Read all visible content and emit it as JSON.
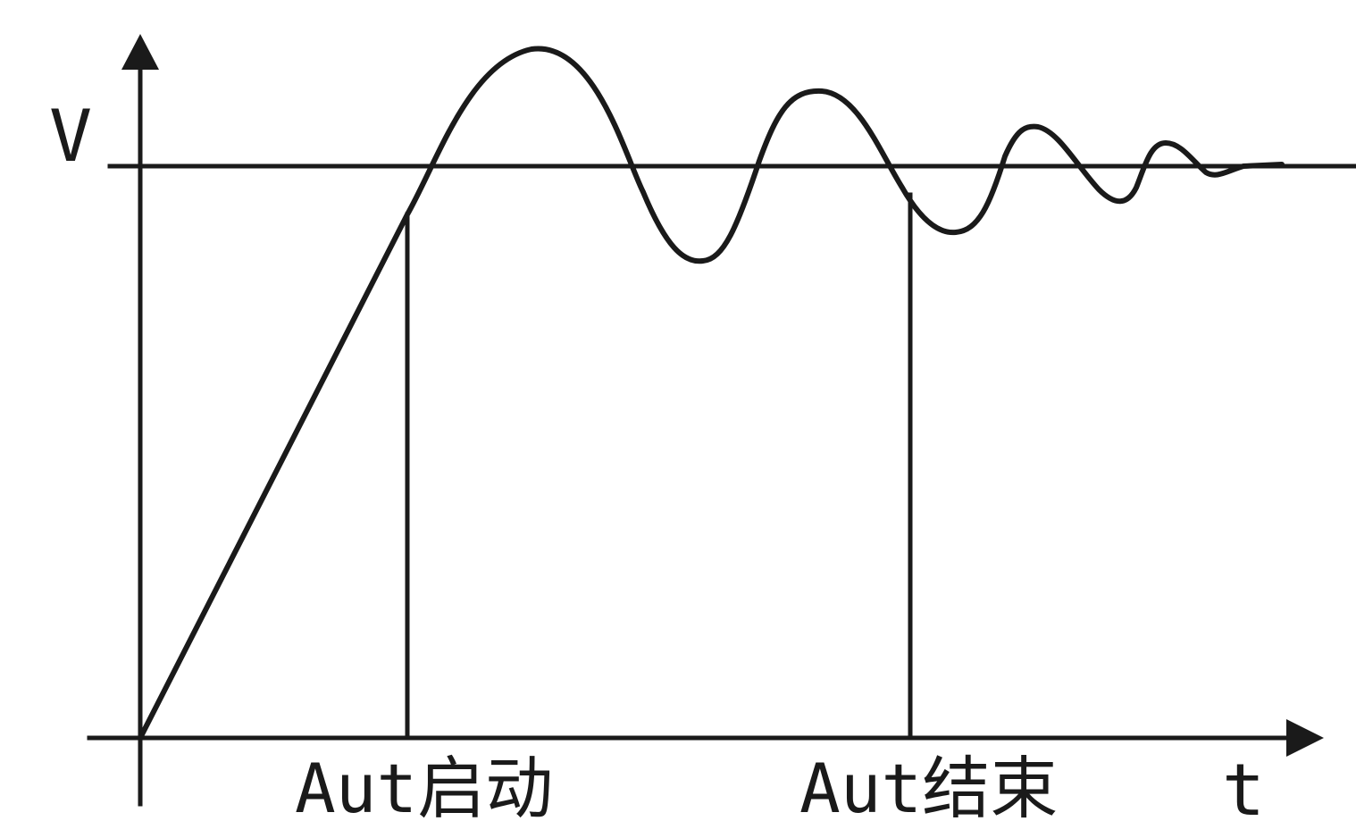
{
  "axes": {
    "y_label": "V",
    "x_label": "t"
  },
  "markers": {
    "start_label": "Aut启动",
    "end_label": "Aut结束"
  },
  "colors": {
    "stroke": "#1a1a1a",
    "background": "#ffffff"
  }
}
